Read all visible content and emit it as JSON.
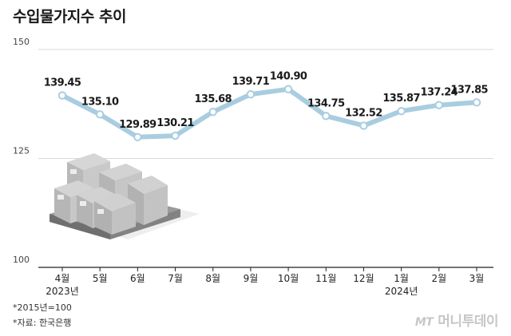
{
  "title": "수입물가지수 추이",
  "footnotes": [
    "*2015년=100",
    "*자료: 한국은행"
  ],
  "brand": {
    "mark": "MT",
    "name": "머니투데이"
  },
  "colors": {
    "line": "#a9cde0",
    "marker_fill": "#ffffff",
    "marker_stroke": "#a9cde0",
    "axis": "#222222",
    "grid": "#d9d9d9"
  },
  "icons": [
    "cardboard-boxes-pallet-icon"
  ],
  "chart_data": {
    "type": "line",
    "title": "수입물가지수 추이",
    "categories": [
      "4월",
      "5월",
      "6월",
      "7월",
      "8월",
      "9월",
      "10월",
      "11월",
      "12월",
      "1월",
      "2월",
      "3월"
    ],
    "year_labels": [
      {
        "index": 0,
        "label": "2023년"
      },
      {
        "index": 9,
        "label": "2024년"
      }
    ],
    "values": [
      139.45,
      135.1,
      129.89,
      130.21,
      135.68,
      139.71,
      140.9,
      134.75,
      132.52,
      135.87,
      137.24,
      137.85
    ],
    "value_labels": [
      "139.45",
      "135.10",
      "129.89",
      "130.21",
      "135.68",
      "139.71",
      "140.90",
      "134.75",
      "132.52",
      "135.87",
      "137.24",
      "137.85"
    ],
    "yticks": [
      100,
      125,
      150
    ],
    "ytick_labels": [
      "100",
      "125",
      "150"
    ],
    "ylim": [
      100,
      150
    ],
    "xlabel": "",
    "ylabel": "",
    "grid": true
  }
}
